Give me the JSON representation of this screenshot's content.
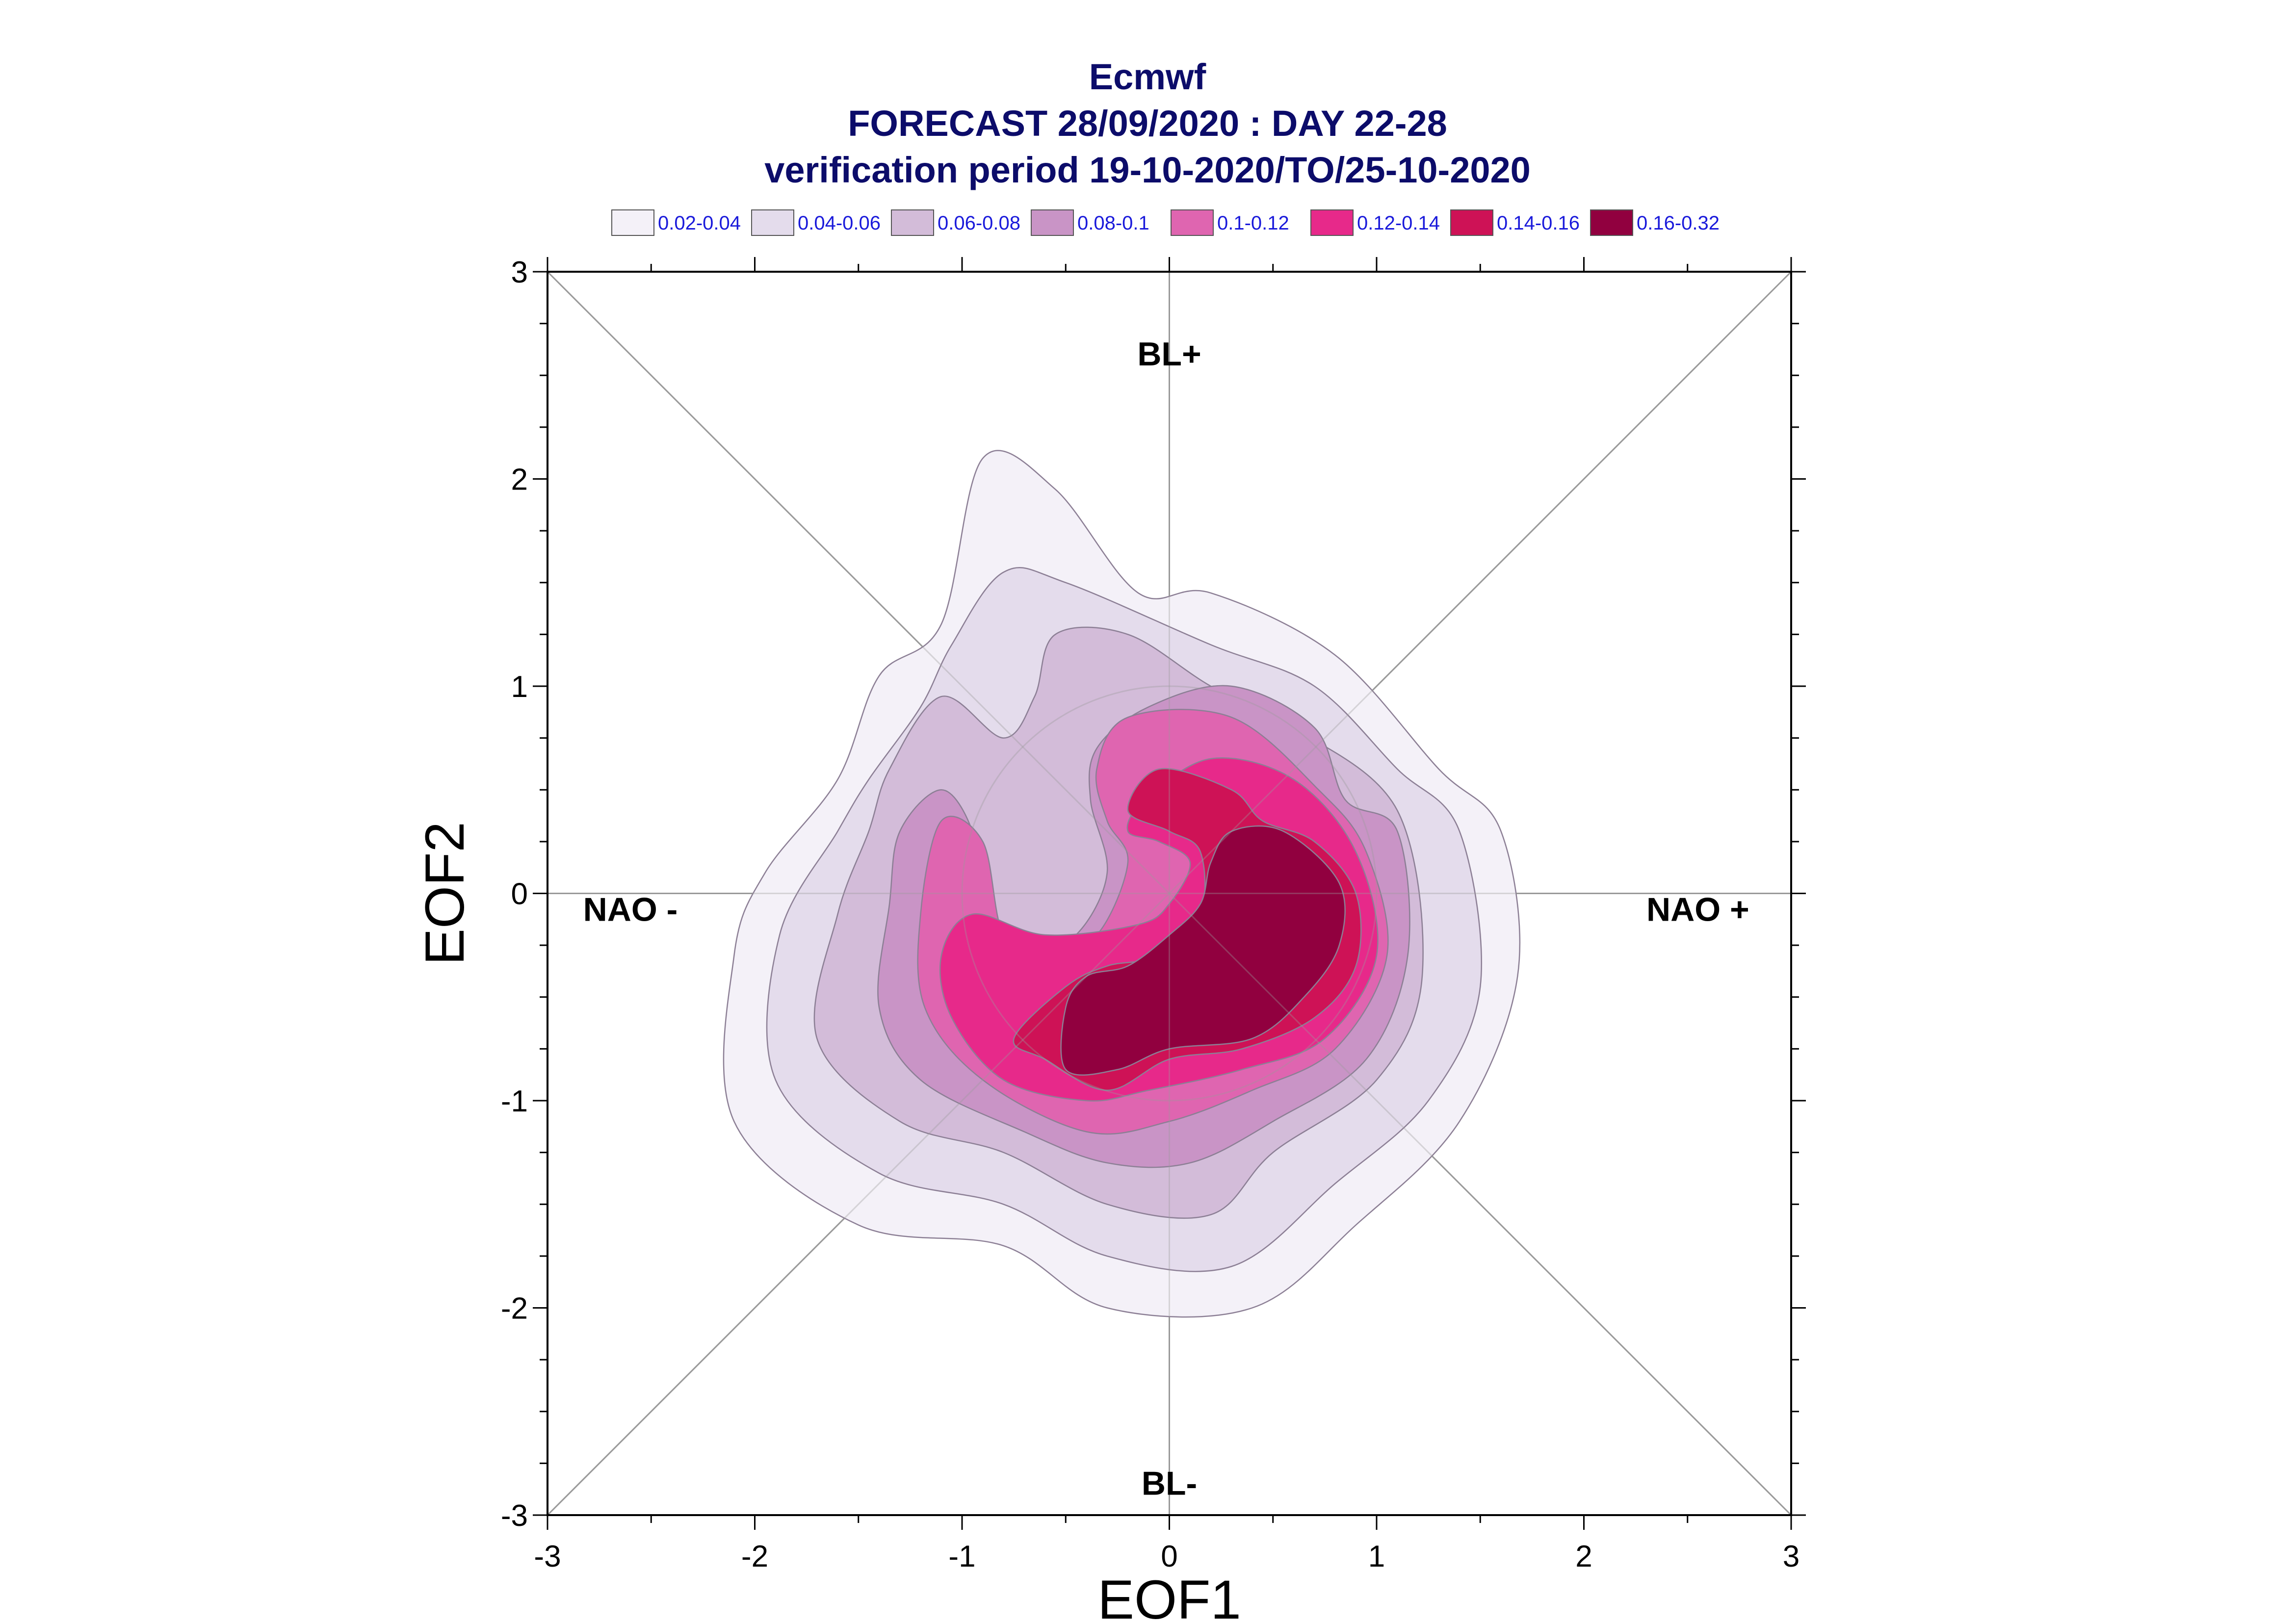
{
  "chart_data": {
    "type": "contour",
    "title": "Ecmwf",
    "subtitle": "FORECAST 28/09/2020 : DAY 22-28",
    "subtitle2": "verification period 19-10-2020/TO/25-10-2020",
    "xlabel": "EOF1",
    "ylabel": "EOF2",
    "xlim": [
      -3,
      3
    ],
    "ylim": [
      -3,
      3
    ],
    "x_ticks": [
      "-3",
      "-2",
      "-1",
      "0",
      "1",
      "2",
      "3"
    ],
    "y_ticks": [
      "3",
      "2",
      "1",
      "0",
      "-1",
      "-2",
      "-3"
    ],
    "regions": {
      "top": "BL+",
      "bottom": "BL-",
      "left": "NAO -",
      "right": "NAO +"
    },
    "legend": [
      {
        "label": "0.02-0.04",
        "color": "#f4f1f8"
      },
      {
        "label": "0.04-0.06",
        "color": "#e4dcec"
      },
      {
        "label": "0.06-0.08",
        "color": "#d3bcd9"
      },
      {
        "label": "0.08-0.1",
        "color": "#c994c6"
      },
      {
        "label": "0.1-0.12",
        "color": "#df65b0"
      },
      {
        "label": "0.12-0.14",
        "color": "#e7298a"
      },
      {
        "label": "0.14-0.16",
        "color": "#ce1256"
      },
      {
        "label": "0.16-0.32",
        "color": "#91003f"
      }
    ],
    "levels": [
      {
        "range": "0.02-0.04",
        "color": "#f4f1f8",
        "points": [
          [
            -0.9,
            2.1
          ],
          [
            -0.55,
            1.95
          ],
          [
            -0.15,
            1.45
          ],
          [
            0.2,
            1.45
          ],
          [
            0.8,
            1.15
          ],
          [
            1.3,
            0.6
          ],
          [
            1.6,
            0.3
          ],
          [
            1.68,
            -0.4
          ],
          [
            1.4,
            -1.1
          ],
          [
            0.9,
            -1.6
          ],
          [
            0.4,
            -2.0
          ],
          [
            -0.3,
            -2.0
          ],
          [
            -0.8,
            -1.7
          ],
          [
            -1.5,
            -1.6
          ],
          [
            -2.1,
            -1.1
          ],
          [
            -2.1,
            -0.3
          ],
          [
            -1.95,
            0.1
          ],
          [
            -1.6,
            0.55
          ],
          [
            -1.4,
            1.05
          ],
          [
            -1.1,
            1.3
          ]
        ]
      },
      {
        "range": "0.04-0.06",
        "color": "#e4dcec",
        "points": [
          [
            -0.8,
            1.55
          ],
          [
            -0.5,
            1.5
          ],
          [
            0.2,
            1.2
          ],
          [
            0.7,
            1.0
          ],
          [
            1.1,
            0.6
          ],
          [
            1.4,
            0.3
          ],
          [
            1.5,
            -0.45
          ],
          [
            1.25,
            -1.0
          ],
          [
            0.8,
            -1.4
          ],
          [
            0.3,
            -1.8
          ],
          [
            -0.3,
            -1.75
          ],
          [
            -0.8,
            -1.5
          ],
          [
            -1.4,
            -1.35
          ],
          [
            -1.9,
            -0.9
          ],
          [
            -1.88,
            -0.2
          ],
          [
            -1.6,
            0.3
          ],
          [
            -1.45,
            0.55
          ],
          [
            -1.2,
            0.9
          ],
          [
            -1.05,
            1.2
          ]
        ]
      },
      {
        "range": "0.06-0.08",
        "color": "#d3bcd9",
        "points": [
          [
            -0.55,
            1.25
          ],
          [
            -0.2,
            1.25
          ],
          [
            0.2,
            1.0
          ],
          [
            0.6,
            0.8
          ],
          [
            1.1,
            0.4
          ],
          [
            1.22,
            -0.4
          ],
          [
            1.0,
            -0.9
          ],
          [
            0.5,
            -1.25
          ],
          [
            0.2,
            -1.55
          ],
          [
            -0.3,
            -1.5
          ],
          [
            -0.8,
            -1.25
          ],
          [
            -1.3,
            -1.1
          ],
          [
            -1.7,
            -0.7
          ],
          [
            -1.6,
            -0.1
          ],
          [
            -1.45,
            0.3
          ],
          [
            -1.35,
            0.6
          ],
          [
            -1.1,
            0.95
          ],
          [
            -0.8,
            0.75
          ],
          [
            -0.65,
            0.95
          ]
        ]
      },
      {
        "range": "0.08-0.1",
        "color": "#c994c6",
        "points": [
          [
            -0.1,
            0.9
          ],
          [
            0.3,
            1.0
          ],
          [
            0.7,
            0.8
          ],
          [
            0.85,
            0.45
          ],
          [
            1.1,
            0.3
          ],
          [
            1.15,
            -0.3
          ],
          [
            0.95,
            -0.8
          ],
          [
            0.5,
            -1.1
          ],
          [
            0.1,
            -1.3
          ],
          [
            -0.3,
            -1.3
          ],
          [
            -0.7,
            -1.15
          ],
          [
            -1.2,
            -0.9
          ],
          [
            -1.4,
            -0.55
          ],
          [
            -1.35,
            -0.05
          ],
          [
            -1.3,
            0.3
          ],
          [
            -1.1,
            0.5
          ],
          [
            -0.95,
            0.3
          ],
          [
            -0.9,
            -0.05
          ],
          [
            -0.7,
            -0.3
          ],
          [
            -0.45,
            -0.2
          ],
          [
            -0.3,
            0.1
          ],
          [
            -0.38,
            0.45
          ],
          [
            -0.35,
            0.7
          ]
        ]
      },
      {
        "range": "0.1-0.12",
        "color": "#df65b0",
        "points": [
          [
            -0.2,
            0.85
          ],
          [
            0.3,
            0.85
          ],
          [
            0.72,
            0.5
          ],
          [
            0.95,
            0.2
          ],
          [
            1.05,
            -0.3
          ],
          [
            0.8,
            -0.75
          ],
          [
            0.4,
            -0.95
          ],
          [
            0.0,
            -1.1
          ],
          [
            -0.4,
            -1.15
          ],
          [
            -0.9,
            -0.9
          ],
          [
            -1.18,
            -0.55
          ],
          [
            -1.2,
            -0.1
          ],
          [
            -1.1,
            0.35
          ],
          [
            -0.9,
            0.25
          ],
          [
            -0.8,
            -0.2
          ],
          [
            -0.6,
            -0.28
          ],
          [
            -0.35,
            -0.2
          ],
          [
            -0.2,
            0.15
          ],
          [
            -0.3,
            0.35
          ],
          [
            -0.35,
            0.6
          ]
        ]
      },
      {
        "range": "0.12-0.14",
        "color": "#e7298a",
        "points": [
          [
            -0.12,
            0.45
          ],
          [
            0.2,
            0.65
          ],
          [
            0.6,
            0.55
          ],
          [
            0.9,
            0.2
          ],
          [
            1.0,
            -0.3
          ],
          [
            0.75,
            -0.7
          ],
          [
            0.35,
            -0.85
          ],
          [
            -0.1,
            -0.95
          ],
          [
            -0.4,
            -1.0
          ],
          [
            -0.8,
            -0.9
          ],
          [
            -1.05,
            -0.6
          ],
          [
            -1.1,
            -0.3
          ],
          [
            -0.95,
            -0.1
          ],
          [
            -0.6,
            -0.2
          ],
          [
            -0.15,
            -0.15
          ],
          [
            0.0,
            -0.05
          ],
          [
            0.1,
            0.15
          ],
          [
            -0.05,
            0.25
          ],
          [
            -0.2,
            0.3
          ]
        ]
      },
      {
        "range": "0.14-0.16",
        "color": "#ce1256",
        "points": [
          [
            -0.05,
            0.6
          ],
          [
            0.3,
            0.5
          ],
          [
            0.45,
            0.35
          ],
          [
            0.7,
            0.25
          ],
          [
            0.9,
            0.0
          ],
          [
            0.9,
            -0.35
          ],
          [
            0.7,
            -0.6
          ],
          [
            0.35,
            -0.75
          ],
          [
            0.0,
            -0.8
          ],
          [
            -0.3,
            -0.95
          ],
          [
            -0.6,
            -0.8
          ],
          [
            -0.75,
            -0.7
          ],
          [
            -0.5,
            -0.45
          ],
          [
            -0.3,
            -0.35
          ],
          [
            -0.05,
            -0.3
          ],
          [
            0.15,
            -0.1
          ],
          [
            0.15,
            0.2
          ],
          [
            0.0,
            0.3
          ],
          [
            -0.2,
            0.4
          ]
        ]
      },
      {
        "range": "0.16-0.32",
        "color": "#91003f",
        "points": [
          [
            0.3,
            0.3
          ],
          [
            0.55,
            0.3
          ],
          [
            0.82,
            0.05
          ],
          [
            0.82,
            -0.25
          ],
          [
            0.65,
            -0.5
          ],
          [
            0.4,
            -0.7
          ],
          [
            0.0,
            -0.75
          ],
          [
            -0.25,
            -0.85
          ],
          [
            -0.5,
            -0.85
          ],
          [
            -0.5,
            -0.55
          ],
          [
            -0.4,
            -0.4
          ],
          [
            -0.2,
            -0.35
          ],
          [
            0.0,
            -0.2
          ],
          [
            0.15,
            -0.05
          ],
          [
            0.2,
            0.15
          ]
        ]
      }
    ]
  }
}
